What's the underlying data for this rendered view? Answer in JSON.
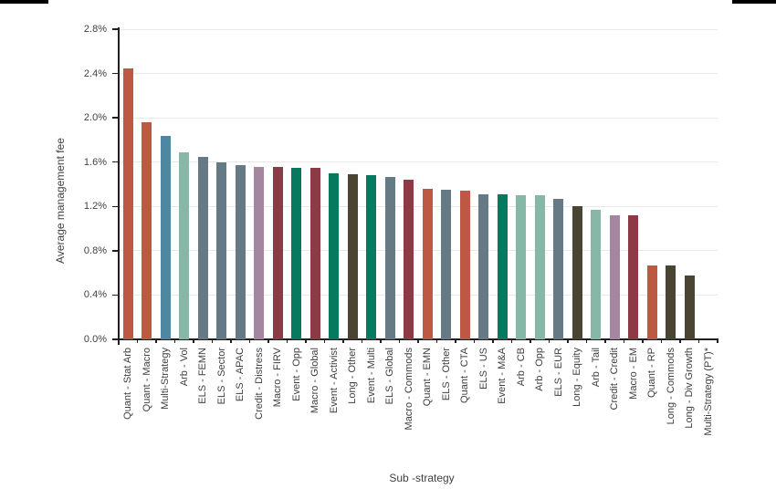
{
  "decor": {
    "accent_bar_color": "#000000",
    "axis_color": "#1f1f1f",
    "grid_color": "#e9e9e9",
    "label_color": "#3f3f3f"
  },
  "chart_data": {
    "type": "bar",
    "title": "",
    "xlabel": "Sub -strategy",
    "ylabel": "Average management fee",
    "ylim": [
      0,
      2.8
    ],
    "ytick_step": 0.4,
    "ytick_labels": [
      "0.0%",
      "0.4%",
      "0.8%",
      "1.2%",
      "1.6%",
      "2.0%",
      "2.4%",
      "2.8%"
    ],
    "grid": true,
    "legend": "none",
    "categories": [
      "Quant - Stat Arb",
      "Quant - Macro",
      "Multi-Strategy",
      "Arb - Vol",
      "ELS - FEMN",
      "ELS - Sector",
      "ELS - APAC",
      "Credit - Distress",
      "Macro - FIRV",
      "Event - Opp",
      "Macro - Global",
      "Event - Activist",
      "Long - Other",
      "Event - Multi",
      "ELS - Global",
      "Macro - Commods",
      "Quant - EMN",
      "ELS - Other",
      "Quant - CTA",
      "ELS - US",
      "Event - M&A",
      "Arb - CB",
      "Arb - Opp",
      "ELS - EUR",
      "Long - Equity",
      "Arb - Tail",
      "Credit - Credit",
      "Macro - EM",
      "Quant - RP",
      "Long - Commods",
      "Long - Div Growth",
      "Multi-Strategy (PT)*"
    ],
    "values": [
      2.45,
      1.96,
      1.84,
      1.69,
      1.65,
      1.6,
      1.57,
      1.56,
      1.56,
      1.55,
      1.55,
      1.5,
      1.49,
      1.48,
      1.47,
      1.44,
      1.36,
      1.35,
      1.34,
      1.31,
      1.31,
      1.3,
      1.3,
      1.27,
      1.2,
      1.17,
      1.12,
      1.12,
      0.67,
      0.67,
      0.58,
      0
    ],
    "families": [
      "quant",
      "quant",
      "multi",
      "arb",
      "els",
      "els",
      "els",
      "credit",
      "macro",
      "event",
      "macro",
      "event",
      "long",
      "event",
      "els",
      "macro",
      "quant",
      "els",
      "quant",
      "els",
      "event",
      "arb",
      "arb",
      "els",
      "long",
      "arb",
      "credit",
      "macro",
      "quant",
      "long",
      "long",
      "multi"
    ],
    "palette": {
      "quant": "#bd5942",
      "multi": "#4e87a2",
      "arb": "#87b8a7",
      "els": "#657a85",
      "credit": "#a586a1",
      "macro": "#8b3a46",
      "event": "#06795e",
      "long": "#4a4433"
    }
  }
}
